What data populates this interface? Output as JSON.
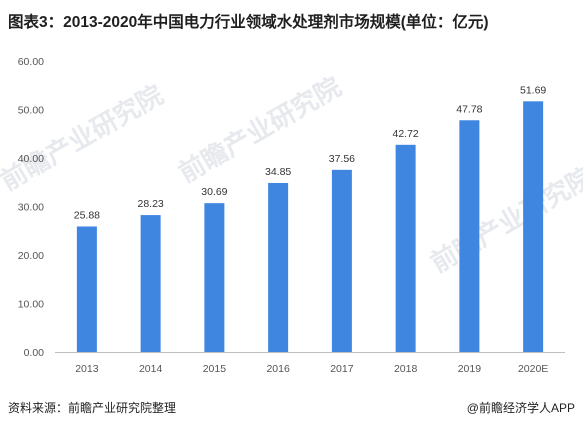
{
  "chart_data": {
    "type": "bar",
    "title": "图表3：2013-2020年中国电力行业领域水处理剂市场规模(单位：亿元)",
    "categories": [
      "2013",
      "2014",
      "2015",
      "2016",
      "2017",
      "2018",
      "2019",
      "2020E"
    ],
    "values": [
      25.88,
      28.23,
      30.69,
      34.85,
      37.56,
      42.72,
      47.78,
      51.69
    ],
    "value_labels": [
      "25.88",
      "28.23",
      "30.69",
      "34.85",
      "37.56",
      "42.72",
      "47.78",
      "51.69"
    ],
    "yticks": [
      "0.00",
      "10.00",
      "20.00",
      "30.00",
      "40.00",
      "50.00",
      "60.00"
    ],
    "ylim": [
      0,
      60
    ],
    "xlabel": "",
    "ylabel": "",
    "bar_color": "#3f86e0",
    "grid": false,
    "legend": false
  },
  "footer": {
    "source": "资料来源：前瞻产业研究院整理",
    "credit": "@前瞻经济学人APP"
  },
  "watermark": {
    "text": "前瞻产业研究院",
    "color": "#c8ced6"
  }
}
